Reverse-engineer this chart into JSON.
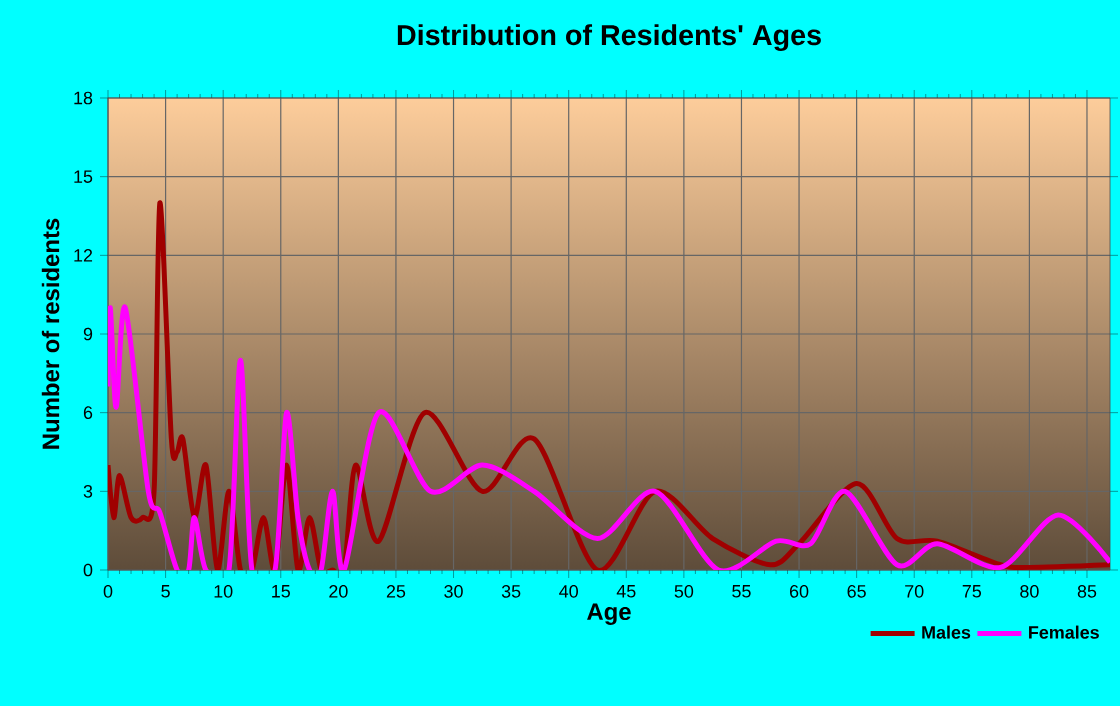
{
  "chart_data": {
    "type": "line",
    "title": "Distribution of Residents' Ages",
    "xlabel": "Age",
    "ylabel": "Number of residents",
    "xlim": [
      0,
      87
    ],
    "xticks": [
      0,
      5,
      10,
      15,
      20,
      25,
      30,
      35,
      40,
      45,
      50,
      55,
      60,
      65,
      70,
      75,
      80,
      85
    ],
    "ylim": [
      0,
      18
    ],
    "yticks": [
      0,
      3,
      6,
      9,
      12,
      15,
      18
    ],
    "grid": true,
    "legend": "bottom right",
    "series": [
      {
        "name": "Males",
        "color": "#a00000",
        "x": [
          0,
          0.5,
          1,
          2,
          3,
          4,
          4.5,
          5.5,
          6,
          6.5,
          7.5,
          8.5,
          9.5,
          10.5,
          11.5,
          12.5,
          13.5,
          14.5,
          15.5,
          16.5,
          17.5,
          18.5,
          19.5,
          20.5,
          21.5,
          23.5,
          27.5,
          32.5,
          37,
          42.5,
          47.5,
          52.5,
          57.5,
          60,
          65,
          68.5,
          72,
          77.5,
          80,
          87
        ],
        "values": [
          4,
          2,
          3.6,
          2,
          2,
          3,
          14,
          5,
          4.5,
          5,
          2,
          4,
          0,
          3,
          0,
          0,
          2,
          0,
          4,
          0,
          2,
          0,
          0,
          0,
          4,
          1.1,
          6,
          3,
          5,
          0,
          3,
          1.2,
          0.2,
          1,
          3.3,
          1.2,
          1.1,
          0.2,
          0.1,
          0.2
        ]
      },
      {
        "name": "Females",
        "color": "#ff00ff",
        "x": [
          0,
          0.2,
          0.7,
          1.5,
          3.5,
          4.5,
          6,
          7,
          7.5,
          8.5,
          10.5,
          11.5,
          12.5,
          14.5,
          15.5,
          16.5,
          17.5,
          18.5,
          19.5,
          20.5,
          23.5,
          28,
          32.5,
          37,
          42.5,
          47.5,
          53,
          58,
          61,
          64,
          68.5,
          72,
          77.5,
          82.5,
          87
        ],
        "values": [
          7,
          10,
          6.2,
          10,
          3,
          2.2,
          0,
          0,
          2,
          0,
          0,
          8,
          0,
          0,
          6,
          2,
          0,
          0,
          3,
          0,
          6,
          3,
          4,
          3,
          1.2,
          3,
          0,
          1.1,
          1,
          3,
          0.2,
          1,
          0.1,
          2.1,
          0.3
        ]
      }
    ]
  }
}
